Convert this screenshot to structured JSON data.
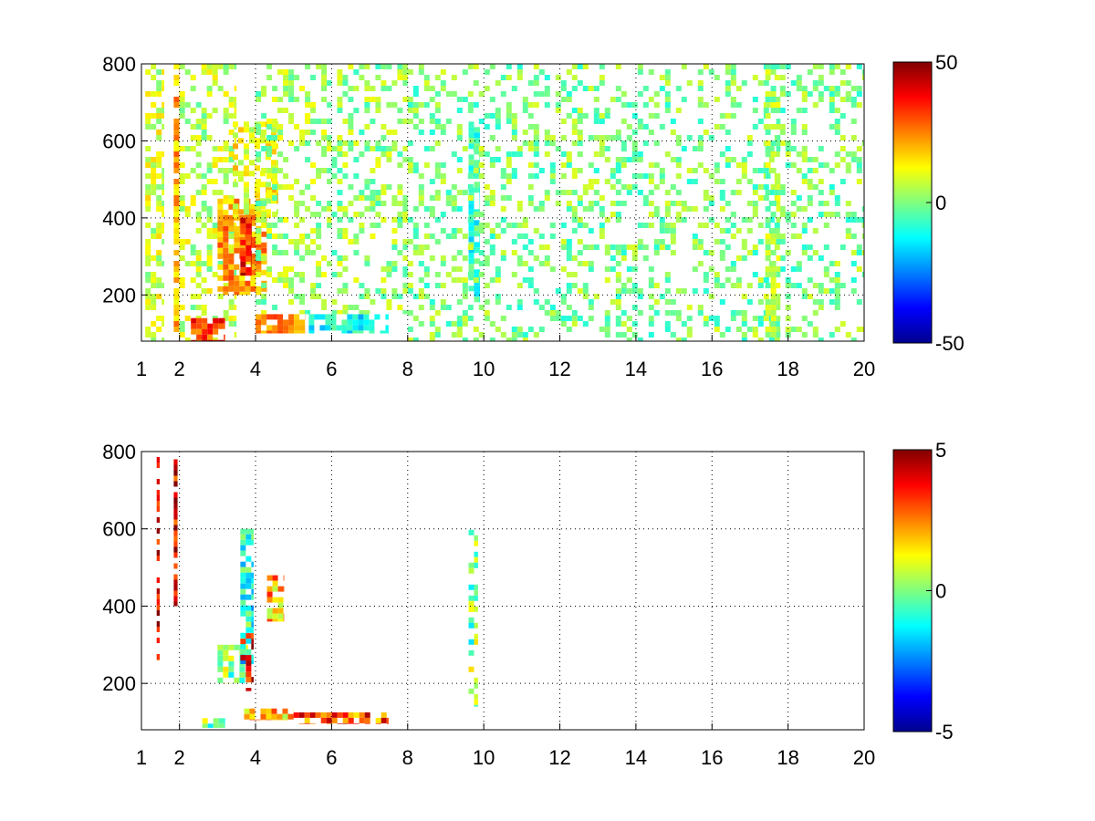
{
  "figure": {
    "background": "#ffffff"
  },
  "chart_data": [
    {
      "type": "heatmap",
      "title": "",
      "xlabel": "",
      "ylabel": "",
      "xlim": [
        1,
        20
      ],
      "ylim": [
        80,
        800
      ],
      "x_ticks": [
        1,
        2,
        4,
        6,
        8,
        10,
        12,
        14,
        16,
        18,
        20
      ],
      "y_ticks": [
        200,
        400,
        600,
        800
      ],
      "grid": true,
      "grid_style": "dotted",
      "colormap": "jet",
      "clim": [
        -50,
        50
      ],
      "colorbar_ticks": [
        50,
        0,
        -50
      ],
      "regions": [
        {
          "x": [
            1.1,
            1.6
          ],
          "y": [
            80,
            800
          ],
          "value": 8,
          "density": 0.55
        },
        {
          "x": [
            1.85,
            2.0
          ],
          "y": [
            80,
            800
          ],
          "value": 20,
          "density": 0.8
        },
        {
          "x": [
            2.0,
            3.5
          ],
          "y": [
            80,
            800
          ],
          "value": 6,
          "density": 0.35
        },
        {
          "x": [
            2.3,
            3.2
          ],
          "y": [
            80,
            140
          ],
          "value": 32,
          "density": 0.9
        },
        {
          "x": [
            3.0,
            4.3
          ],
          "y": [
            200,
            450
          ],
          "value": 22,
          "density": 0.75
        },
        {
          "x": [
            3.6,
            3.9
          ],
          "y": [
            250,
            400
          ],
          "value": 38,
          "density": 0.85
        },
        {
          "x": [
            3.4,
            4.6
          ],
          "y": [
            400,
            650
          ],
          "value": 12,
          "density": 0.55
        },
        {
          "x": [
            4.0,
            5.3
          ],
          "y": [
            100,
            150
          ],
          "value": 25,
          "density": 0.8
        },
        {
          "x": [
            5.4,
            7.5
          ],
          "y": [
            100,
            150
          ],
          "value": -12,
          "density": 0.7
        },
        {
          "x": [
            4.0,
            6.0
          ],
          "y": [
            150,
            800
          ],
          "value": 3,
          "density": 0.35
        },
        {
          "x": [
            6.0,
            8.0
          ],
          "y": [
            150,
            800
          ],
          "value": 2,
          "density": 0.3
        },
        {
          "x": [
            9.6,
            9.9
          ],
          "y": [
            180,
            650
          ],
          "value": -8,
          "density": 0.75
        },
        {
          "x": [
            8.0,
            20.0
          ],
          "y": [
            80,
            800
          ],
          "value": 0,
          "density": 0.28
        },
        {
          "x": [
            17.4,
            17.8
          ],
          "y": [
            80,
            800
          ],
          "value": 3,
          "density": 0.55
        }
      ]
    },
    {
      "type": "heatmap",
      "title": "",
      "xlabel": "",
      "ylabel": "",
      "xlim": [
        1,
        20
      ],
      "ylim": [
        80,
        800
      ],
      "x_ticks": [
        1,
        2,
        4,
        6,
        8,
        10,
        12,
        14,
        16,
        18,
        20
      ],
      "y_ticks": [
        200,
        400,
        600,
        800
      ],
      "grid": true,
      "grid_style": "dotted",
      "colormap": "jet",
      "clim": [
        -5,
        5
      ],
      "colorbar_ticks": [
        5,
        0,
        -5
      ],
      "regions": [
        {
          "x": [
            1.4,
            1.48
          ],
          "y": [
            260,
            800
          ],
          "value": 4,
          "density": 0.7
        },
        {
          "x": [
            1.85,
            1.95
          ],
          "y": [
            400,
            780
          ],
          "value": 4,
          "density": 0.8
        },
        {
          "x": [
            3.0,
            3.8
          ],
          "y": [
            200,
            300
          ],
          "value": 0,
          "density": 0.45
        },
        {
          "x": [
            3.6,
            3.95
          ],
          "y": [
            250,
            600
          ],
          "value": -1,
          "density": 0.7
        },
        {
          "x": [
            3.6,
            3.95
          ],
          "y": [
            180,
            330
          ],
          "value": 4,
          "density": 0.5
        },
        {
          "x": [
            4.3,
            4.75
          ],
          "y": [
            360,
            480
          ],
          "value": 2,
          "density": 0.55
        },
        {
          "x": [
            2.6,
            3.2
          ],
          "y": [
            85,
            110
          ],
          "value": 0,
          "density": 0.75
        },
        {
          "x": [
            3.7,
            5.0
          ],
          "y": [
            105,
            135
          ],
          "value": 2,
          "density": 0.85
        },
        {
          "x": [
            5.0,
            7.5
          ],
          "y": [
            95,
            125
          ],
          "value": 3,
          "density": 0.75
        },
        {
          "x": [
            9.6,
            9.85
          ],
          "y": [
            140,
            640
          ],
          "value": 0,
          "density": 0.35
        }
      ]
    }
  ]
}
